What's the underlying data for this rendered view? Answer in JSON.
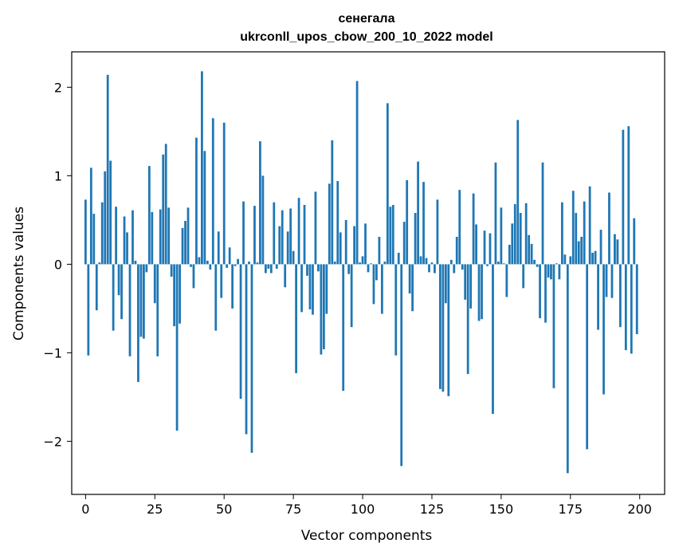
{
  "chart_data": {
    "type": "bar",
    "title": "сенегала",
    "subtitle": "ukrconll_upos_cbow_200_10_2022 model",
    "xlabel": "Vector components",
    "ylabel": "Components values",
    "xlim": [
      -5,
      209
    ],
    "ylim": [
      -2.6,
      2.4
    ],
    "xticks": [
      0,
      25,
      50,
      75,
      100,
      125,
      150,
      175,
      200
    ],
    "xtick_labels": [
      "0",
      "25",
      "50",
      "75",
      "100",
      "125",
      "150",
      "175",
      "200"
    ],
    "yticks": [
      -2,
      -1,
      0,
      1,
      2
    ],
    "ytick_labels": [
      "−2",
      "−1",
      "0",
      "1",
      "2"
    ],
    "grid": false,
    "bar_color": "#1f77b4",
    "values": [
      0.73,
      -1.03,
      1.09,
      0.57,
      -0.52,
      0.02,
      0.7,
      1.05,
      2.14,
      1.17,
      -0.75,
      0.65,
      -0.35,
      -0.62,
      0.54,
      0.36,
      -1.04,
      0.61,
      0.04,
      -1.33,
      -0.82,
      -0.84,
      -0.09,
      1.11,
      0.59,
      -0.44,
      -1.04,
      0.62,
      1.24,
      1.36,
      0.64,
      -0.14,
      -0.7,
      -1.88,
      -0.67,
      0.41,
      0.49,
      0.64,
      -0.03,
      -0.27,
      1.43,
      0.08,
      2.18,
      1.28,
      0.04,
      -0.06,
      1.65,
      -0.75,
      0.37,
      -0.38,
      1.6,
      -0.04,
      0.19,
      -0.5,
      -0.02,
      0.06,
      -1.52,
      0.71,
      -1.92,
      0.03,
      -2.13,
      0.66,
      0.02,
      1.39,
      1.0,
      -0.1,
      -0.05,
      -0.1,
      0.7,
      -0.05,
      0.43,
      0.61,
      -0.26,
      0.37,
      0.63,
      0.15,
      -1.23,
      0.75,
      -0.54,
      0.67,
      -0.13,
      -0.51,
      -0.57,
      0.82,
      -0.08,
      -1.02,
      -0.96,
      -0.56,
      0.91,
      1.4,
      0.03,
      0.94,
      0.36,
      -1.43,
      0.5,
      -0.11,
      -0.71,
      0.43,
      2.07,
      0.02,
      0.09,
      0.46,
      -0.09,
      0.01,
      -0.45,
      -0.18,
      0.31,
      -0.56,
      0.03,
      1.82,
      0.65,
      0.67,
      -1.03,
      0.13,
      -2.28,
      0.48,
      0.95,
      -0.33,
      -0.53,
      0.58,
      1.16,
      0.09,
      0.93,
      0.07,
      -0.09,
      0.02,
      -0.1,
      0.73,
      -1.41,
      -1.44,
      -0.44,
      -1.49,
      0.05,
      -0.1,
      0.31,
      0.84,
      -0.06,
      -0.4,
      -1.24,
      -0.5,
      0.8,
      0.45,
      -0.64,
      -0.62,
      0.38,
      -0.02,
      0.35,
      -1.69,
      1.15,
      0.03,
      0.64,
      0.01,
      -0.37,
      0.22,
      0.46,
      0.68,
      1.63,
      0.58,
      -0.27,
      0.69,
      0.33,
      0.23,
      0.05,
      -0.03,
      -0.61,
      1.15,
      -0.66,
      -0.15,
      -0.17,
      -1.4,
      0.01,
      -0.17,
      0.7,
      0.11,
      -2.36,
      0.09,
      0.83,
      0.58,
      0.26,
      0.31,
      0.71,
      -2.09,
      0.88,
      0.13,
      0.15,
      -0.74,
      0.39,
      -1.47,
      -0.37,
      0.81,
      -0.38,
      0.34,
      0.28,
      -0.71,
      1.52,
      -0.97,
      1.56,
      -1.01,
      0.52,
      -0.79
    ]
  }
}
